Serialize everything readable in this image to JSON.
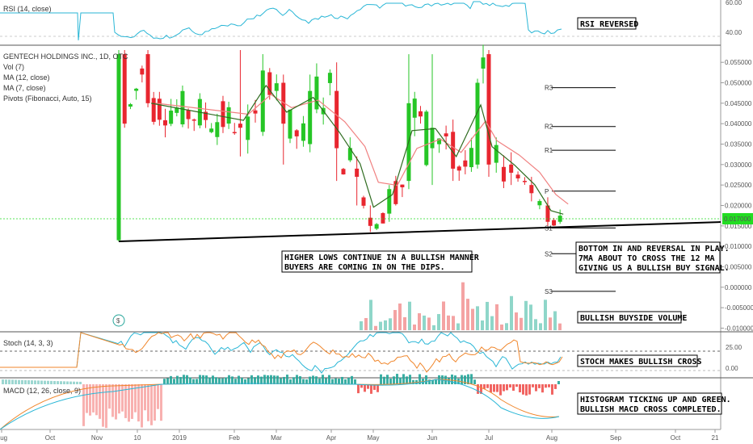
{
  "indicators": {
    "rsi": "RSI (14, close)",
    "symbol": "GENTECH HOLDINGS INC., 1D, OTC",
    "vol": "Vol (7)",
    "ma12": "MA (12, close)",
    "ma7": "MA (7, close)",
    "pivots": "Pivots (Fibonacci, Auto, 15)",
    "stoch": "Stoch (14, 3, 3)",
    "macd": "MACD (12, 26, close, 9)"
  },
  "annotations": {
    "rsi_reversed": "RSI REVERSED",
    "higher_lows": [
      "HIGHER LOWS CONTINUE IN A BULLISH MANNER",
      "BUYERS ARE COMING IN ON THE DIPS."
    ],
    "bottom_in": [
      "BOTTOM IN AND REVERSAL IN PLAY.",
      "7MA ABOUT TO CROSS THE 12 MA",
      "GIVING US A BULLISH BUY SIGNAL."
    ],
    "buyside_volume": "BULLISH BUYSIDE VOLUME",
    "stoch_cross": "STOCH MAKES BULLISH CROSS",
    "macd_note": [
      "HISTOGRAM TICKING UP AND GREEN.",
      "BULLISH MACD CROSS COMPLETED."
    ],
    "dividend_marker": "$"
  },
  "pivot_labels": [
    "R3",
    "R2",
    "R1",
    "P",
    "S1",
    "S2",
    "S3"
  ],
  "colors": {
    "up": "#26c626",
    "down": "#e8262f",
    "ma12": "#f08080",
    "ma7": "#2e6b1f",
    "rsi": "#29b6d6",
    "stoch_k": "#29b6d6",
    "stoch_d": "#f0862b",
    "vol_up": "#8fd6c9",
    "vol_down": "#f4a3a3",
    "hist_up": "#26a69a",
    "hist_down": "#ef5350",
    "price_tag": "#22dd22"
  },
  "chart_data": {
    "type": "candlestick",
    "x_ticks": [
      "Aug",
      "Oct",
      "Nov",
      "10",
      "2019",
      "Feb",
      "Mar",
      "Apr",
      "May",
      "Jun",
      "Jul",
      "Aug",
      "Sep",
      "Oct",
      "21"
    ],
    "price_axis_ticks": [
      "0.055000",
      "0.050000",
      "0.045000",
      "0.040000",
      "0.035000",
      "0.030000",
      "0.025000",
      "0.020000",
      "0.015000",
      "0.010000",
      "0.005000",
      "0.000000",
      "-0.005000",
      "-0.010000"
    ],
    "price_ylim": [
      -0.0105,
      0.058
    ],
    "current_price": "0.017000",
    "rsi_axis_ticks": [
      "60.00",
      "40.00"
    ],
    "stoch_axis_ticks": [
      "25.00",
      "0.00"
    ],
    "pivots": {
      "R3": 0.0488,
      "R2": 0.0393,
      "R1": 0.0335,
      "P": 0.0235,
      "S1": 0.0145,
      "S2": 0.0082,
      "S3": -0.001
    },
    "trendline": [
      {
        "date": "2018-11-10",
        "price": 0.0112
      },
      {
        "date": "2019-08-25",
        "price": 0.0162
      }
    ],
    "price_series": [
      {
        "date": "2018-11-10",
        "open": 0.0115,
        "close": 0.057,
        "high": 0.058,
        "low": 0.0112
      },
      {
        "date": "2018-11-15",
        "open": 0.057,
        "close": 0.04,
        "high": 0.058,
        "low": 0.039
      },
      {
        "date": "2018-12-05",
        "open": 0.057,
        "close": 0.045,
        "high": 0.058,
        "low": 0.044
      },
      {
        "date": "2019-02-05",
        "open": 0.04,
        "close": 0.039,
        "high": 0.058,
        "low": 0.032
      },
      {
        "date": "2019-02-20",
        "open": 0.038,
        "close": 0.053,
        "high": 0.057,
        "low": 0.037
      },
      {
        "date": "2019-03-05",
        "open": 0.05,
        "close": 0.04,
        "high": 0.052,
        "low": 0.03
      },
      {
        "date": "2019-03-20",
        "open": 0.035,
        "close": 0.048,
        "high": 0.052,
        "low": 0.033
      },
      {
        "date": "2019-04-05",
        "open": 0.048,
        "close": 0.034,
        "high": 0.055,
        "low": 0.026
      },
      {
        "date": "2019-04-20",
        "open": 0.029,
        "close": 0.027,
        "high": 0.032,
        "low": 0.02
      },
      {
        "date": "2019-04-30",
        "open": 0.017,
        "close": 0.015,
        "high": 0.02,
        "low": 0.0135
      },
      {
        "date": "2019-05-10",
        "open": 0.018,
        "close": 0.024,
        "high": 0.025,
        "low": 0.016
      },
      {
        "date": "2019-05-20",
        "open": 0.026,
        "close": 0.045,
        "high": 0.057,
        "low": 0.024
      },
      {
        "date": "2019-06-01",
        "open": 0.034,
        "close": 0.039,
        "high": 0.057,
        "low": 0.025
      },
      {
        "date": "2019-06-12",
        "open": 0.038,
        "close": 0.029,
        "high": 0.041,
        "low": 0.026
      },
      {
        "date": "2019-06-25",
        "open": 0.03,
        "close": 0.05,
        "high": 0.051,
        "low": 0.029
      },
      {
        "date": "2019-07-01",
        "open": 0.057,
        "close": 0.03,
        "high": 0.058,
        "low": 0.027
      },
      {
        "date": "2019-07-12",
        "open": 0.03,
        "close": 0.028,
        "high": 0.033,
        "low": 0.025
      },
      {
        "date": "2019-07-22",
        "open": 0.025,
        "close": 0.023,
        "high": 0.027,
        "low": 0.021
      },
      {
        "date": "2019-07-30",
        "open": 0.02,
        "close": 0.016,
        "high": 0.022,
        "low": 0.015
      },
      {
        "date": "2019-08-05",
        "open": 0.016,
        "close": 0.0175,
        "high": 0.019,
        "low": 0.0155
      }
    ]
  }
}
